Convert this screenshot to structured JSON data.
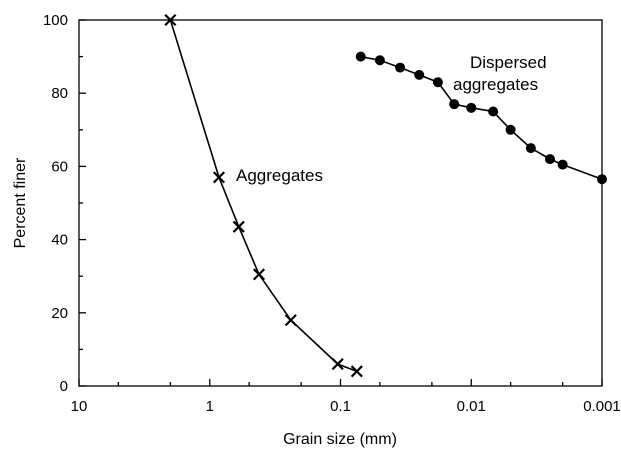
{
  "chart_data": {
    "type": "line",
    "title": "",
    "xlabel": "Grain size (mm)",
    "ylabel": "Percent finer",
    "x_scale": "log",
    "x_reversed": true,
    "xlim": [
      10,
      0.001
    ],
    "ylim": [
      0,
      100
    ],
    "x_ticks": [
      10,
      1,
      0.1,
      0.01,
      0.001
    ],
    "x_tick_labels": [
      "10",
      "1",
      "0.1",
      "0.01",
      "0.001"
    ],
    "y_ticks": [
      0,
      20,
      40,
      60,
      80,
      100
    ],
    "y_tick_labels": [
      "0",
      "20",
      "40",
      "60",
      "80",
      "100"
    ],
    "grid": false,
    "legend": "none",
    "series": [
      {
        "label": "Aggregates",
        "marker": "x",
        "color": "#000000",
        "x": [
          2.0,
          0.85,
          0.6,
          0.42,
          0.24,
          0.105,
          0.075
        ],
        "y": [
          100,
          57,
          43.5,
          30.5,
          18,
          6,
          4
        ]
      },
      {
        "label": "Dispersed aggregates",
        "label_lines": [
          "Dispersed",
          "aggregates"
        ],
        "marker": "circle",
        "color": "#000000",
        "x": [
          0.07,
          0.05,
          0.035,
          0.025,
          0.018,
          0.0135,
          0.01,
          0.0068,
          0.005,
          0.0035,
          0.0025,
          0.002,
          0.001
        ],
        "y": [
          90,
          89,
          87,
          85,
          83,
          77,
          76,
          75,
          70,
          65,
          62,
          60.5,
          56.5
        ]
      }
    ]
  }
}
